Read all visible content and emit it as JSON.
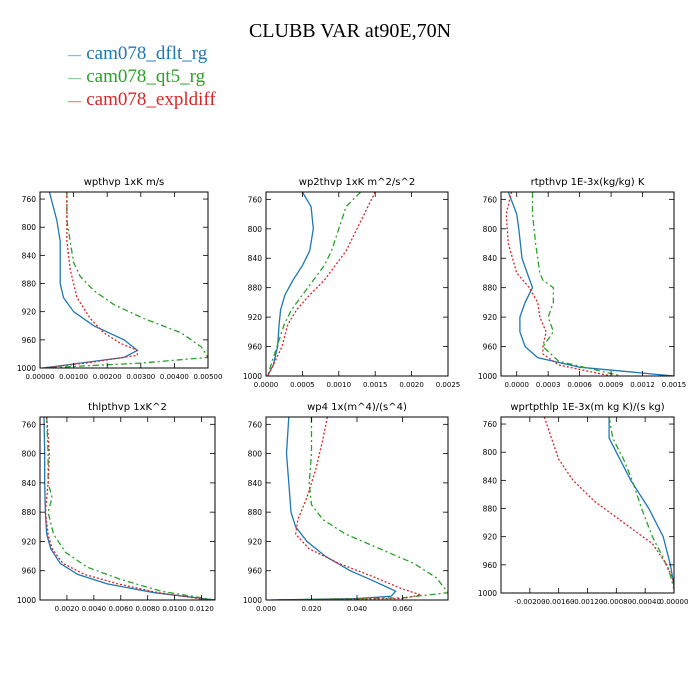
{
  "figure": {
    "title": "CLUBB VAR at90E,70N",
    "legend": [
      {
        "label": "cam078_dflt_rg",
        "color": "#1f77b4"
      },
      {
        "label": "cam078_qt5_rg",
        "color": "#2ca02c"
      },
      {
        "label": "cam078_expldiff",
        "color": "#d62728"
      }
    ]
  },
  "chart_data": [
    {
      "type": "line",
      "title": "wpthvp   1xK m/s",
      "xlim": [
        0,
        0.005
      ],
      "ylim": [
        1000,
        750
      ],
      "xticks": [
        0,
        0.001,
        0.002,
        0.003,
        0.004,
        0.005
      ],
      "xticklabels": [
        "0.00000",
        "0.00100",
        "0.00200",
        "0.00300",
        "0.00400",
        "0.00500"
      ],
      "yticks": [
        760,
        800,
        840,
        880,
        920,
        960,
        1000
      ],
      "yticklabels": [
        "760",
        "800",
        "840",
        "880",
        "920",
        "960",
        "1000"
      ],
      "series": [
        {
          "name": "cam078_dflt_rg",
          "color": "#1f77b4",
          "dash": "",
          "x": [
            0.00028,
            0.0005,
            0.0006,
            0.0006,
            0.0006,
            0.0007,
            0.001,
            0.0016,
            0.0025,
            0.0029,
            0.0025,
            0.0012,
            0.0001
          ],
          "y": [
            750,
            790,
            820,
            850,
            880,
            900,
            920,
            940,
            960,
            975,
            985,
            993,
            1000
          ]
        },
        {
          "name": "cam078_qt5_rg",
          "color": "#2ca02c",
          "dash": "6,3,2,3",
          "x": [
            0.0008,
            0.0008,
            0.0009,
            0.001,
            0.0012,
            0.0016,
            0.0022,
            0.0031,
            0.0042,
            0.0048,
            0.005,
            0.003,
            0.0001
          ],
          "y": [
            750,
            790,
            820,
            850,
            870,
            890,
            910,
            930,
            950,
            970,
            985,
            993,
            1000
          ]
        },
        {
          "name": "cam078_expldiff",
          "color": "#d62728",
          "dash": "2,2",
          "x": [
            0.0008,
            0.0008,
            0.0008,
            0.0009,
            0.0011,
            0.0015,
            0.0019,
            0.0024,
            0.0029,
            0.0029,
            0.0015,
            0.0001
          ],
          "y": [
            750,
            790,
            820,
            860,
            900,
            930,
            950,
            965,
            975,
            982,
            992,
            1000
          ]
        }
      ]
    },
    {
      "type": "line",
      "title": "wp2thvp   1xK m^2/s^2",
      "xlim": [
        0,
        0.0025
      ],
      "ylim": [
        1000,
        750
      ],
      "xticks": [
        0,
        0.0005,
        0.001,
        0.0015,
        0.002,
        0.0025
      ],
      "xticklabels": [
        "0.0000",
        "0.0005",
        "0.0010",
        "0.0015",
        "0.0020",
        "0.0025"
      ],
      "yticks": [
        760,
        800,
        840,
        880,
        920,
        960,
        1000
      ],
      "yticklabels": [
        "760",
        "800",
        "840",
        "880",
        "920",
        "960",
        "1000"
      ],
      "series": [
        {
          "name": "cam078_dflt_rg",
          "color": "#1f77b4",
          "dash": "",
          "x": [
            0.0005,
            0.00062,
            0.00065,
            0.0006,
            0.0005,
            0.00037,
            0.00026,
            0.0002,
            0.00018,
            0.00016,
            0.0001,
            2e-05
          ],
          "y": [
            750,
            770,
            800,
            830,
            850,
            870,
            890,
            910,
            930,
            960,
            985,
            1000
          ]
        },
        {
          "name": "cam078_qt5_rg",
          "color": "#2ca02c",
          "dash": "6,3,2,3",
          "x": [
            0.0013,
            0.0011,
            0.001,
            0.0009,
            0.0008,
            0.00065,
            0.0005,
            0.00035,
            0.00025,
            0.00015,
            2e-05
          ],
          "y": [
            750,
            770,
            800,
            830,
            850,
            870,
            890,
            910,
            930,
            960,
            1000
          ]
        },
        {
          "name": "cam078_expldiff",
          "color": "#d62728",
          "dash": "2,2",
          "x": [
            0.0015,
            0.0014,
            0.00125,
            0.0011,
            0.00095,
            0.0008,
            0.0006,
            0.00042,
            0.0003,
            0.00022,
            0.0001,
            2e-05
          ],
          "y": [
            750,
            770,
            800,
            830,
            850,
            870,
            890,
            910,
            930,
            960,
            985,
            1000
          ]
        }
      ]
    },
    {
      "type": "line",
      "title": "rtpthvp   1E-3x(kg/kg) K",
      "xlim": [
        -0.00015,
        0.0015
      ],
      "ylim": [
        1000,
        750
      ],
      "xticks": [
        0,
        0.0003,
        0.0006,
        0.0009,
        0.0012,
        0.0015
      ],
      "xticklabels": [
        "0.0000",
        "0.0003",
        "0.0006",
        "0.0009",
        "0.0012",
        "0.0015"
      ],
      "yticks": [
        760,
        800,
        840,
        880,
        920,
        960,
        1000
      ],
      "yticklabels": [
        "760",
        "800",
        "840",
        "880",
        "920",
        "960",
        "1000"
      ],
      "series": [
        {
          "name": "cam078_dflt_rg",
          "color": "#1f77b4",
          "dash": "",
          "x": [
            -8e-05,
            0,
            2e-05,
            5e-05,
            0.0001,
            0.00015,
            8e-05,
            3e-05,
            3e-05,
            8e-05,
            0.0002,
            0.0006,
            0.0015
          ],
          "y": [
            750,
            780,
            800,
            840,
            860,
            880,
            900,
            920,
            940,
            960,
            975,
            988,
            1000
          ]
        },
        {
          "name": "cam078_qt5_rg",
          "color": "#2ca02c",
          "dash": "6,3,2,3",
          "x": [
            0.00015,
            0.00015,
            0.00018,
            0.00022,
            0.00025,
            0.00035,
            0.00035,
            0.0003,
            0.00035,
            0.00025,
            0.0004,
            0.001
          ],
          "y": [
            750,
            780,
            820,
            860,
            870,
            880,
            900,
            920,
            940,
            960,
            980,
            1000
          ]
        },
        {
          "name": "cam078_expldiff",
          "color": "#d62728",
          "dash": "2,2",
          "x": [
            -5e-05,
            -0.0001,
            -8e-05,
            0,
            0.00012,
            0.0002,
            0.00022,
            0.00028,
            0.00025,
            0.00025,
            0.0004,
            0.0009
          ],
          "y": [
            750,
            780,
            820,
            860,
            880,
            900,
            920,
            940,
            960,
            970,
            985,
            1000
          ]
        }
      ]
    },
    {
      "type": "line",
      "title": "thlpthvp   1xK^2",
      "xlim": [
        0,
        0.013
      ],
      "ylim": [
        1000,
        750
      ],
      "xticks": [
        0.002,
        0.004,
        0.006,
        0.008,
        0.01,
        0.012
      ],
      "xticklabels": [
        "0.0020",
        "0.0040",
        "0.0060",
        "0.0080",
        "0.0100",
        "0.0120"
      ],
      "yticks": [
        760,
        800,
        840,
        880,
        920,
        960,
        1000
      ],
      "yticklabels": [
        "760",
        "800",
        "840",
        "880",
        "920",
        "960",
        "1000"
      ],
      "series": [
        {
          "name": "cam078_dflt_rg",
          "color": "#1f77b4",
          "dash": "",
          "x": [
            0.0003,
            0.00035,
            0.00035,
            0.0004,
            0.0005,
            0.0008,
            0.0015,
            0.0028,
            0.005,
            0.0085,
            0.013
          ],
          "y": [
            750,
            800,
            840,
            880,
            910,
            930,
            950,
            965,
            978,
            990,
            1000
          ]
        },
        {
          "name": "cam078_qt5_rg",
          "color": "#2ca02c",
          "dash": "6,3,2,3",
          "x": [
            0.0005,
            0.0006,
            0.0006,
            0.0009,
            0.0006,
            0.001,
            0.0019,
            0.0035,
            0.006,
            0.009,
            0.013
          ],
          "y": [
            750,
            800,
            840,
            860,
            880,
            910,
            935,
            955,
            972,
            988,
            1000
          ]
        },
        {
          "name": "cam078_expldiff",
          "color": "#d62728",
          "dash": "2,2",
          "x": [
            0.0005,
            0.0007,
            0.0006,
            0.0004,
            0.0006,
            0.0009,
            0.0017,
            0.0033,
            0.0058,
            0.0088,
            0.0125
          ],
          "y": [
            750,
            800,
            840,
            880,
            910,
            930,
            950,
            965,
            978,
            990,
            1000
          ]
        }
      ]
    },
    {
      "type": "line",
      "title": "wp4   1x(m^4)/(s^4)",
      "xlim": [
        0,
        0.08
      ],
      "ylim": [
        1000,
        750
      ],
      "xticks": [
        0,
        0.02,
        0.04,
        0.06
      ],
      "xticklabels": [
        "0.000",
        "0.020",
        "0.040",
        "0.060"
      ],
      "yticks": [
        760,
        800,
        840,
        880,
        920,
        960,
        1000
      ],
      "yticklabels": [
        "760",
        "800",
        "840",
        "880",
        "920",
        "960",
        "1000"
      ],
      "series": [
        {
          "name": "cam078_dflt_rg",
          "color": "#1f77b4",
          "dash": "",
          "x": [
            0.01,
            0.009,
            0.01,
            0.011,
            0.013,
            0.018,
            0.026,
            0.037,
            0.048,
            0.057,
            0.055,
            0.04,
            0.002
          ],
          "y": [
            750,
            800,
            840,
            880,
            900,
            920,
            940,
            960,
            975,
            988,
            995,
            998,
            1000
          ]
        },
        {
          "name": "cam078_qt5_rg",
          "color": "#2ca02c",
          "dash": "6,3,2,3",
          "x": [
            0.02,
            0.02,
            0.019,
            0.02,
            0.025,
            0.035,
            0.05,
            0.065,
            0.075,
            0.08,
            0.06,
            0.005
          ],
          "y": [
            750,
            800,
            840,
            870,
            890,
            910,
            930,
            950,
            970,
            990,
            997,
            1000
          ]
        },
        {
          "name": "cam078_expldiff",
          "color": "#d62728",
          "dash": "2,2",
          "x": [
            0.027,
            0.025,
            0.022,
            0.018,
            0.014,
            0.013,
            0.019,
            0.032,
            0.047,
            0.06,
            0.068,
            0.06,
            0.004
          ],
          "y": [
            750,
            780,
            820,
            860,
            890,
            910,
            930,
            950,
            968,
            985,
            993,
            998,
            1000
          ]
        }
      ]
    },
    {
      "type": "line",
      "title": "wprtpthlp   1E-3x(m kg K)/(s kg)",
      "xlim": [
        -0.0024,
        0
      ],
      "ylim": [
        1000,
        750
      ],
      "xticks": [
        -0.002,
        -0.0016,
        -0.0012,
        -0.0008,
        -0.0004,
        0
      ],
      "xticklabels": [
        "-0.00200",
        "-0.00160",
        "-0.00120",
        "-0.00080",
        "-0.00040",
        "0.00000"
      ],
      "yticks": [
        760,
        800,
        840,
        880,
        920,
        960,
        1000
      ],
      "yticklabels": [
        "760",
        "800",
        "840",
        "880",
        "920",
        "960",
        "1000"
      ],
      "series": [
        {
          "name": "cam078_dflt_rg",
          "color": "#1f77b4",
          "dash": "",
          "x": [
            -0.0009,
            -0.0009,
            -0.00075,
            -0.0006,
            -0.00035,
            -0.00015,
            -5e-05,
            0
          ],
          "y": [
            750,
            780,
            810,
            840,
            880,
            920,
            960,
            990
          ]
        },
        {
          "name": "cam078_qt5_rg",
          "color": "#2ca02c",
          "dash": "6,3,2,3",
          "x": [
            -0.0009,
            -0.00085,
            -0.0007,
            -0.00058,
            -0.00045,
            -0.0003,
            -0.00015,
            -5e-05,
            0
          ],
          "y": [
            750,
            780,
            810,
            840,
            880,
            920,
            950,
            975,
            995
          ]
        },
        {
          "name": "cam078_expldiff",
          "color": "#d62728",
          "dash": "2,2",
          "x": [
            -0.0018,
            -0.0017,
            -0.0016,
            -0.0014,
            -0.0011,
            -0.0007,
            -0.0003,
            -0.0001,
            0
          ],
          "y": [
            750,
            780,
            810,
            840,
            870,
            900,
            930,
            960,
            985
          ]
        }
      ]
    }
  ]
}
